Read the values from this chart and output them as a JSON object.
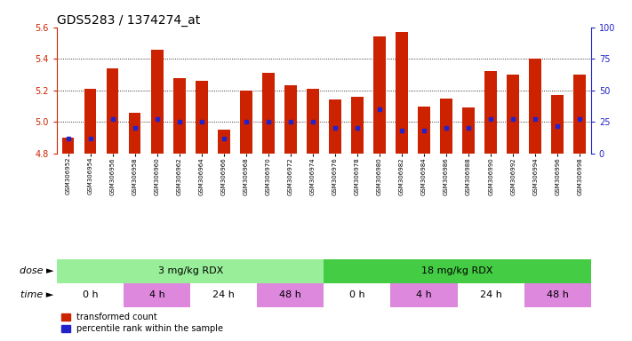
{
  "title": "GDS5283 / 1374274_at",
  "samples": [
    "GSM306952",
    "GSM306954",
    "GSM306956",
    "GSM306958",
    "GSM306960",
    "GSM306962",
    "GSM306964",
    "GSM306966",
    "GSM306968",
    "GSM306970",
    "GSM306972",
    "GSM306974",
    "GSM306976",
    "GSM306978",
    "GSM306980",
    "GSM306982",
    "GSM306984",
    "GSM306986",
    "GSM306988",
    "GSM306990",
    "GSM306992",
    "GSM306994",
    "GSM306996",
    "GSM306998"
  ],
  "transformed_count": [
    4.9,
    5.21,
    5.34,
    5.06,
    5.46,
    5.28,
    5.26,
    4.95,
    5.2,
    5.31,
    5.23,
    5.21,
    5.14,
    5.16,
    5.54,
    5.57,
    5.1,
    5.15,
    5.09,
    5.32,
    5.3,
    5.4,
    5.17,
    5.3
  ],
  "percentile_rank": [
    12,
    12,
    27,
    20,
    27,
    25,
    25,
    12,
    25,
    25,
    25,
    25,
    20,
    20,
    35,
    18,
    18,
    20,
    20,
    27,
    27,
    27,
    22,
    27
  ],
  "ymin": 4.8,
  "ymax": 5.6,
  "yticks": [
    4.8,
    5.0,
    5.2,
    5.4,
    5.6
  ],
  "right_yticks": [
    0,
    25,
    50,
    75,
    100
  ],
  "bar_color": "#cc2200",
  "percentile_color": "#2222cc",
  "bg_color": "#ffffff",
  "plot_bg": "#ffffff",
  "dose_groups": [
    {
      "label": "3 mg/kg RDX",
      "start": 0,
      "end": 12,
      "color": "#99ee99"
    },
    {
      "label": "18 mg/kg RDX",
      "start": 12,
      "end": 24,
      "color": "#44cc44"
    }
  ],
  "time_groups": [
    {
      "label": "0 h",
      "start": 0,
      "end": 3,
      "color": "#ffffff"
    },
    {
      "label": "4 h",
      "start": 3,
      "end": 6,
      "color": "#dd88dd"
    },
    {
      "label": "24 h",
      "start": 6,
      "end": 9,
      "color": "#ffffff"
    },
    {
      "label": "48 h",
      "start": 9,
      "end": 12,
      "color": "#dd88dd"
    },
    {
      "label": "0 h",
      "start": 12,
      "end": 15,
      "color": "#ffffff"
    },
    {
      "label": "4 h",
      "start": 15,
      "end": 18,
      "color": "#dd88dd"
    },
    {
      "label": "24 h",
      "start": 18,
      "end": 21,
      "color": "#ffffff"
    },
    {
      "label": "48 h",
      "start": 21,
      "end": 24,
      "color": "#dd88dd"
    }
  ],
  "legend_items": [
    {
      "label": "transformed count",
      "color": "#cc2200"
    },
    {
      "label": "percentile rank within the sample",
      "color": "#2222cc"
    }
  ],
  "left_axis_color": "#cc2200",
  "right_axis_color": "#2222cc",
  "title_fontsize": 10,
  "tick_fontsize": 7,
  "bar_fontsize": 6,
  "label_fontsize": 8,
  "legend_fontsize": 7
}
